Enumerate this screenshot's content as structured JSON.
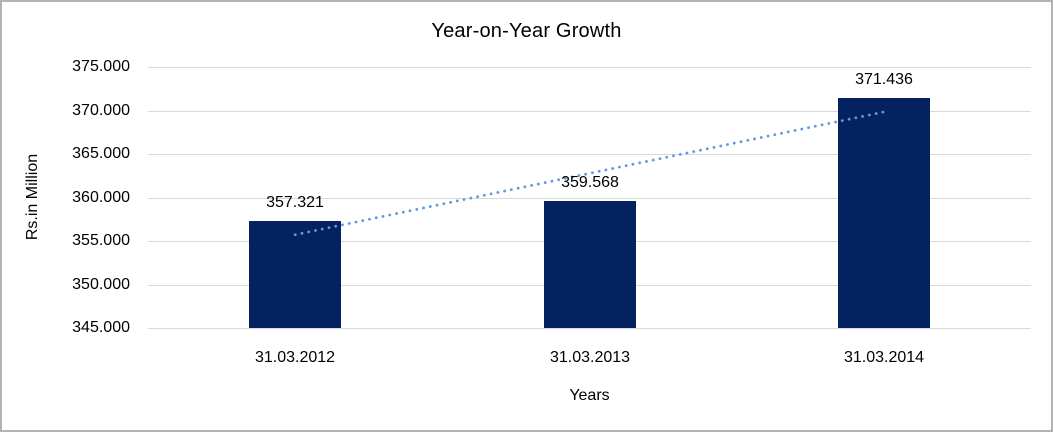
{
  "chart_data": {
    "type": "bar",
    "title": "Year-on-Year Growth",
    "xlabel": "Years",
    "ylabel": "Rs.in Million",
    "categories": [
      "31.03.2012",
      "31.03.2013",
      "31.03.2014"
    ],
    "values": [
      357.321,
      359.568,
      371.436
    ],
    "data_labels": [
      "357.321",
      "359.568",
      "371.436"
    ],
    "ylim": [
      345,
      375
    ],
    "ytick_step": 5,
    "ytick_labels": [
      "345.000",
      "350.000",
      "355.000",
      "360.000",
      "365.000",
      "370.000",
      "375.000"
    ],
    "grid": true,
    "legend_position": "none",
    "trendline": {
      "type": "linear",
      "style": "dotted",
      "start_value": 355.72,
      "end_value": 369.83
    },
    "colors": {
      "bar": "#052260",
      "trendline": "#6398dc",
      "gridline": "#d9d9d9",
      "frame": "#b3b3b3",
      "text": "#000000"
    }
  }
}
